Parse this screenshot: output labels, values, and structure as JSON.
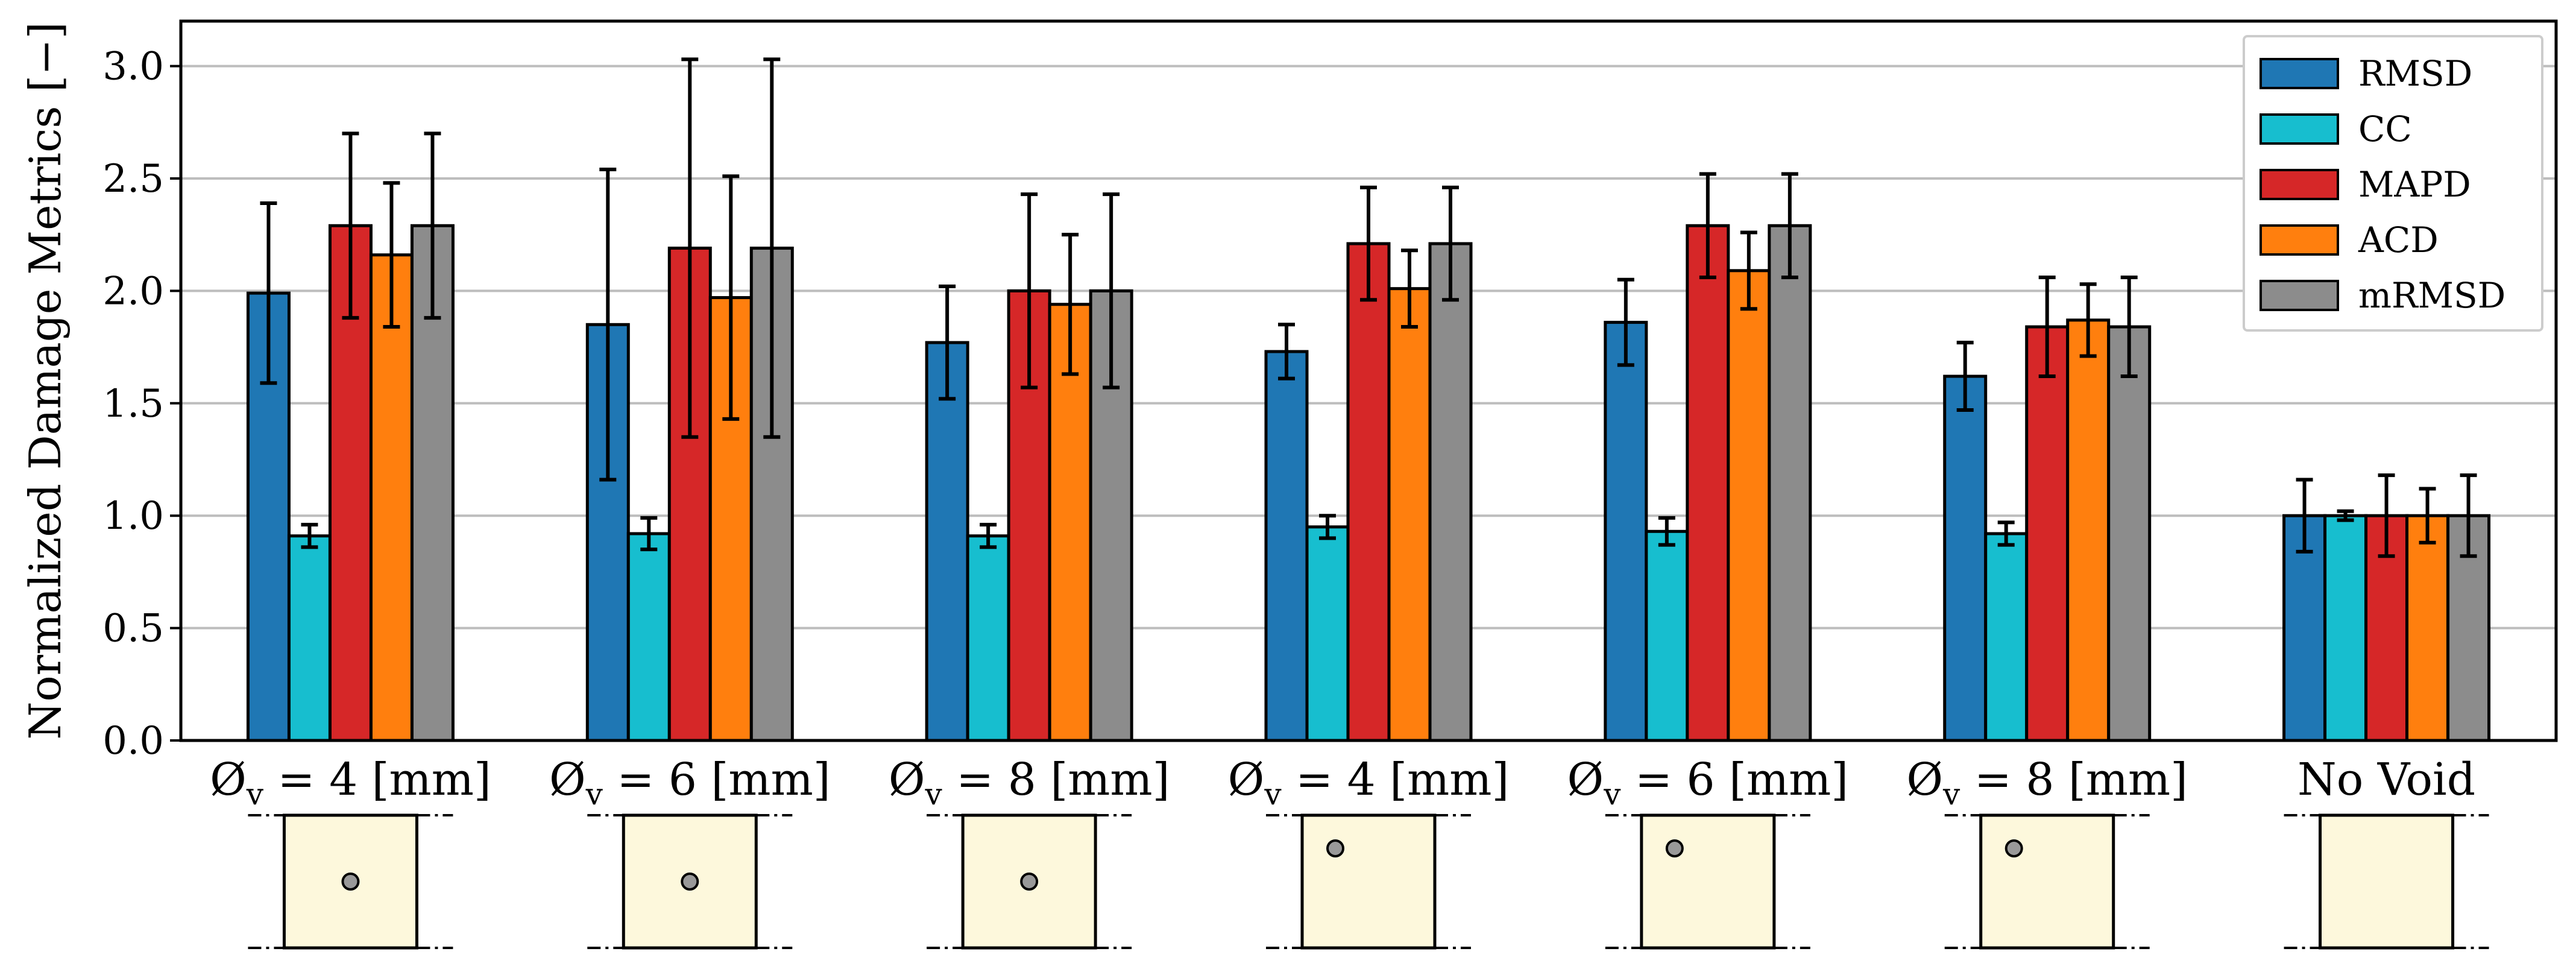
{
  "chart_data": {
    "type": "bar",
    "title": "",
    "ylabel": "Normalized Damage Metrics [−]",
    "xlabel": "",
    "ylim": [
      0,
      3.2
    ],
    "yticks": [
      0.0,
      0.5,
      1.0,
      1.5,
      2.0,
      2.5,
      3.0
    ],
    "ytick_labels": [
      "0.0",
      "0.5",
      "1.0",
      "1.5",
      "2.0",
      "2.5",
      "3.0"
    ],
    "grid": true,
    "legend_position": "top-right",
    "categories": [
      {
        "label_sym": "Ø",
        "label_sub": "v",
        "label_rest": " = 4 [mm]",
        "void": "center"
      },
      {
        "label_sym": "Ø",
        "label_sub": "v",
        "label_rest": " = 6 [mm]",
        "void": "center"
      },
      {
        "label_sym": "Ø",
        "label_sub": "v",
        "label_rest": " = 8 [mm]",
        "void": "center"
      },
      {
        "label_sym": "Ø",
        "label_sub": "v",
        "label_rest": " = 4 [mm]",
        "void": "corner"
      },
      {
        "label_sym": "Ø",
        "label_sub": "v",
        "label_rest": " = 6 [mm]",
        "void": "corner"
      },
      {
        "label_sym": "Ø",
        "label_sub": "v",
        "label_rest": " = 8 [mm]",
        "void": "corner"
      },
      {
        "label_sym": "",
        "label_sub": "",
        "label_rest": "No Void",
        "void": "none"
      }
    ],
    "series": [
      {
        "name": "RMSD",
        "color": "#1f77b4",
        "values": [
          1.99,
          1.85,
          1.77,
          1.73,
          1.86,
          1.62,
          1.0
        ],
        "errors": [
          0.4,
          0.69,
          0.25,
          0.12,
          0.19,
          0.15,
          0.16
        ]
      },
      {
        "name": "CC",
        "color": "#17becf",
        "values": [
          0.91,
          0.92,
          0.91,
          0.95,
          0.93,
          0.92,
          1.0
        ],
        "errors": [
          0.05,
          0.07,
          0.05,
          0.05,
          0.06,
          0.05,
          0.02
        ]
      },
      {
        "name": "MAPD",
        "color": "#d62728",
        "values": [
          2.29,
          2.19,
          2.0,
          2.21,
          2.29,
          1.84,
          1.0
        ],
        "errors": [
          0.41,
          0.84,
          0.43,
          0.25,
          0.23,
          0.22,
          0.18
        ]
      },
      {
        "name": "ACD",
        "color": "#ff7f0e",
        "values": [
          2.16,
          1.97,
          1.94,
          2.01,
          2.09,
          1.87,
          1.0
        ],
        "errors": [
          0.32,
          0.54,
          0.31,
          0.17,
          0.17,
          0.16,
          0.12
        ]
      },
      {
        "name": "mRMSD",
        "color": "#8c8c8c",
        "values": [
          2.29,
          2.19,
          2.0,
          2.21,
          2.29,
          1.84,
          1.0
        ],
        "errors": [
          0.41,
          0.84,
          0.43,
          0.25,
          0.23,
          0.22,
          0.18
        ]
      }
    ],
    "colors": {
      "axis": "#000000",
      "grid": "#bdbdbd",
      "void_fill": "#fdf8dc",
      "void_marker": "#999999",
      "errorbar": "#000000"
    }
  }
}
